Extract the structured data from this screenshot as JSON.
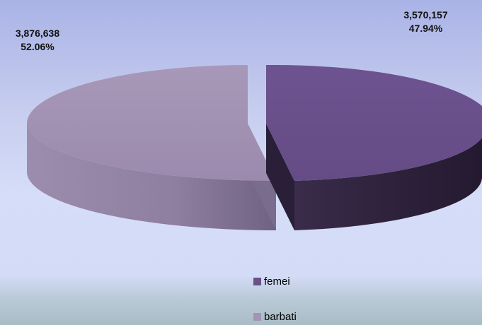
{
  "chart_data": {
    "type": "pie",
    "categories": [
      "femei",
      "barbati"
    ],
    "values": [
      3570157,
      3876638
    ],
    "percents": [
      "47.94%",
      "52.06%"
    ],
    "value_labels": [
      "3,570,157",
      "3,876,638"
    ],
    "colors": [
      "#6a5188",
      "#a090b0"
    ],
    "legend_position": "bottom-center"
  }
}
